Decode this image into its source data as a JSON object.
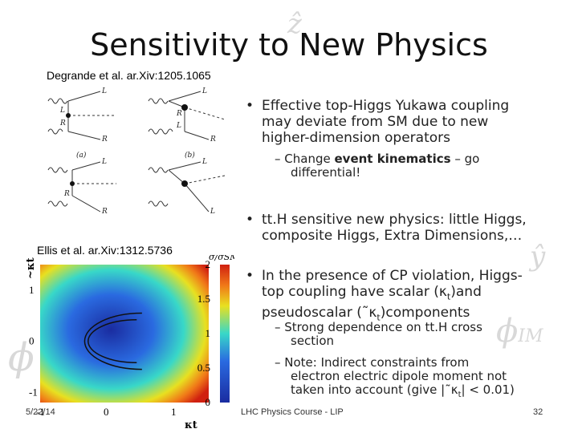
{
  "slide": {
    "title": "Sensitivity to New Physics",
    "refs": {
      "degrande": "Degrande et al. ar.Xiv:1205.1065",
      "ellis": "Ellis et al. ar.Xiv:1312.5736"
    },
    "bullets": [
      {
        "text": "Effective top-Higgs Yukawa coupling may deviate from SM due to new higher-dimension operators",
        "lines": [
          "Effective top-Higgs Yukawa coupling",
          "may deviate from SM due to new",
          "higher-dimension operators"
        ]
      },
      {
        "text": "tt.H sensitive new physics: little Higgs, composite Higgs, Extra Dimensions,…",
        "lines": [
          "tt.H sensitive new physics: little Higgs,",
          "composite Higgs, Extra Dimensions,…"
        ]
      },
      {
        "text": "In the presence of CP violation, Higgs-top coupling have scalar (κt)and pseudoscalar (˜κt)components",
        "lines": [
          "In the presence of CP violation, Higgs-",
          "top coupling have scalar (κ",
          "t",
          ")and",
          "pseudoscalar (˜κ",
          "t",
          ")components"
        ]
      }
    ],
    "subbullets": {
      "kinematics": {
        "prefix": "Change",
        "bold": "event kinematics",
        "suffix": "– go",
        "line2": "differential!"
      },
      "cross": [
        "Strong dependence on tt.H cross",
        "section"
      ],
      "note": [
        "Note: Indirect constraints from",
        "electron electric dipole moment not",
        "taken into account (give |˜κ",
        "t",
        "| < 0.01)"
      ]
    },
    "footer": {
      "date": "5/22/14",
      "course": "LHC Physics Course - LIP",
      "page": "32"
    }
  },
  "diagram": {
    "labels": {
      "L": "L",
      "R": "R",
      "a": "(a)",
      "b": "(b)"
    }
  },
  "chart_data": {
    "type": "heatmap",
    "title": "",
    "xlabel": "κt",
    "ylabel": "~κt",
    "colorbar_label": "σ/σSM",
    "x_ticks": [
      -1,
      0,
      1
    ],
    "y_ticks": [
      -1,
      0,
      1
    ],
    "xlim": [
      -1,
      1.5
    ],
    "ylim": [
      -1.2,
      1.5
    ],
    "colorbar_ticks": [
      0,
      0.5,
      1,
      1.5,
      2
    ],
    "contour_center": [
      0,
      0
    ],
    "colors": {
      "low": "#1a2ca0",
      "mid": "#38d8c8",
      "high": "#d02010"
    }
  },
  "colors": {
    "watermark": "#d8d8d8"
  }
}
